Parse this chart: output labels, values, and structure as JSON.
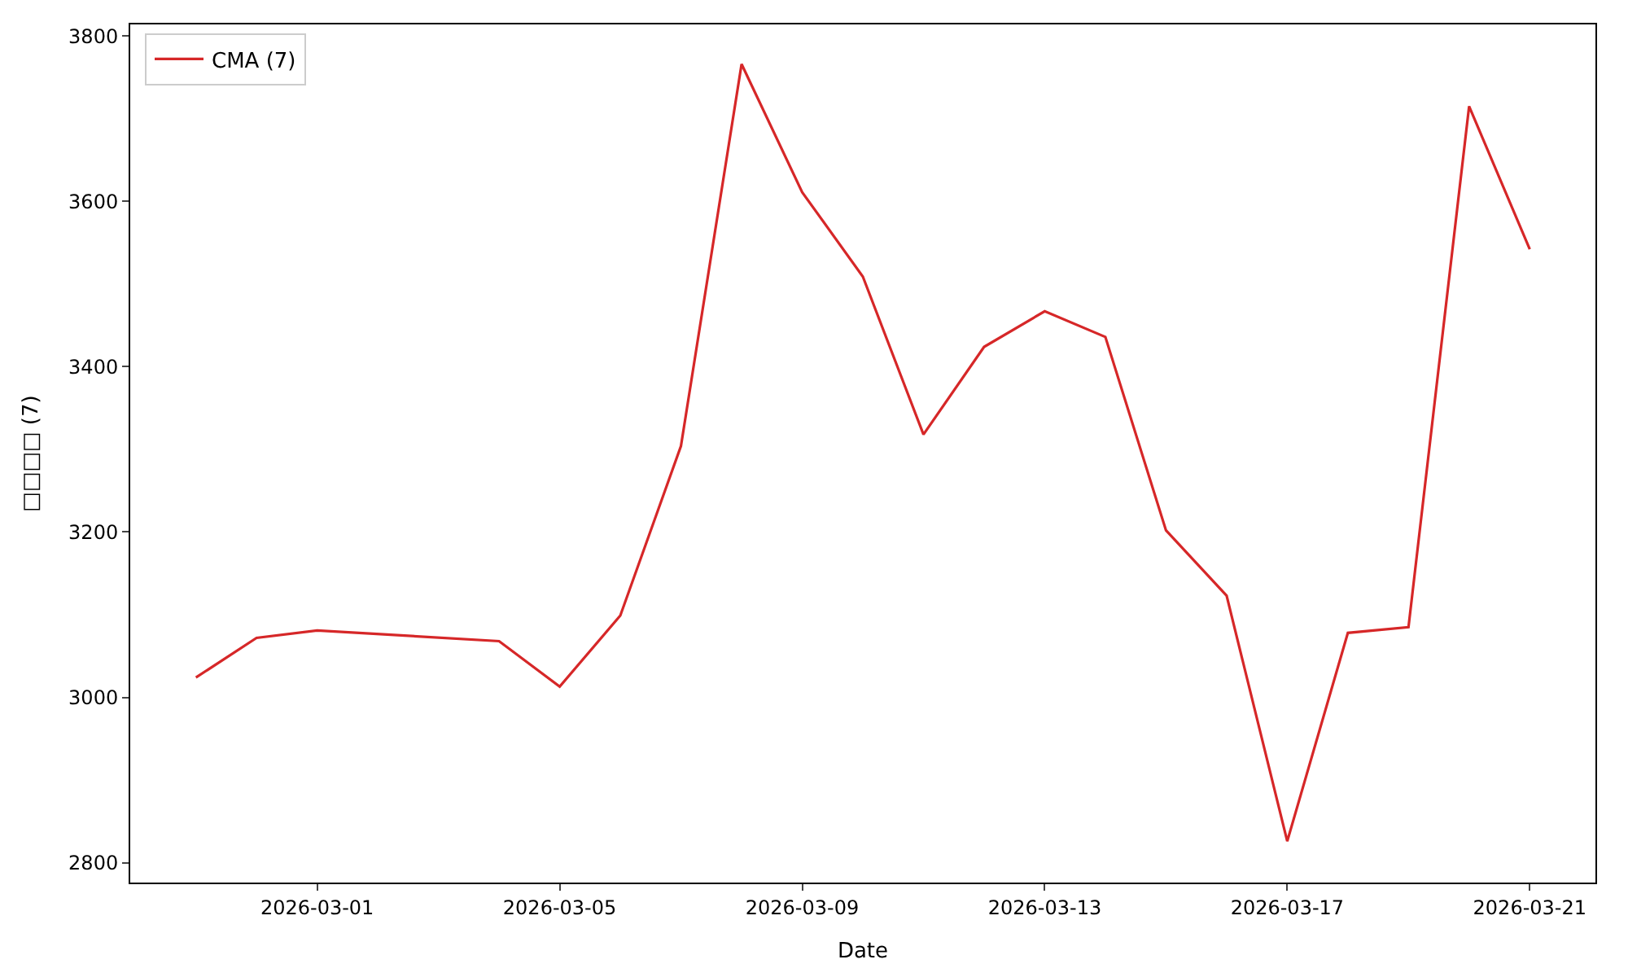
{
  "chart_data": {
    "type": "line",
    "xlabel": "Date",
    "ylabel": "□□□□ (7)",
    "x": [
      "2026-02-27",
      "2026-02-28",
      "2026-03-01",
      "2026-03-04",
      "2026-03-05",
      "2026-03-06",
      "2026-03-07",
      "2026-03-08",
      "2026-03-09",
      "2026-03-10",
      "2026-03-11",
      "2026-03-12",
      "2026-03-13",
      "2026-03-14",
      "2026-03-15",
      "2026-03-16",
      "2026-03-17",
      "2026-03-18",
      "2026-03-19",
      "2026-03-20",
      "2026-03-21"
    ],
    "series": [
      {
        "name": "CMA (7)",
        "color": "#d62728",
        "values": [
          3024,
          3072,
          3081,
          3068,
          3013,
          3099,
          3304,
          3766,
          3611,
          3509,
          3318,
          3424,
          3467,
          3436,
          3202,
          3123,
          2826,
          3078,
          3085,
          3715,
          3542
        ]
      }
    ],
    "xlim": [
      "2026-02-25T22:00",
      "2026-03-22T02:00"
    ],
    "xticks": [
      "2026-03-01",
      "2026-03-05",
      "2026-03-09",
      "2026-03-13",
      "2026-03-17",
      "2026-03-21"
    ],
    "ylim": [
      2776,
      3814
    ],
    "yticks": [
      2800,
      3000,
      3200,
      3400,
      3600,
      3800
    ],
    "legend": "top left",
    "marker": "none",
    "line_style": "solid"
  }
}
